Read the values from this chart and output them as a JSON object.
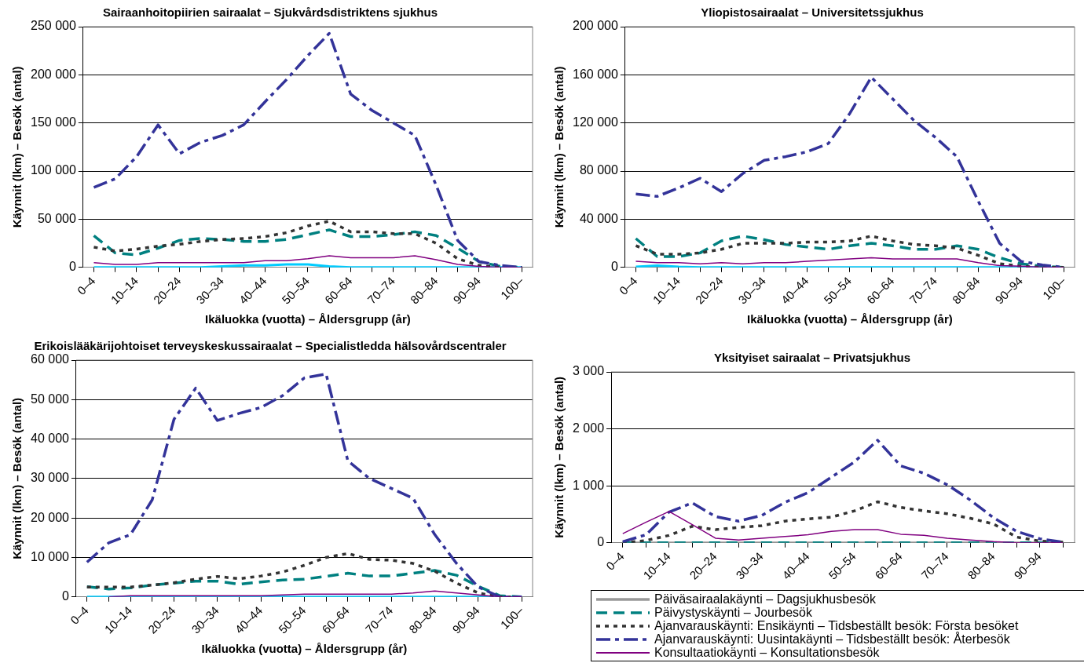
{
  "chart_data": [
    {
      "type": "line",
      "title": "Sairaanhoitopiirien sairaalat – Sjukvårdsdistriktens sjukhus",
      "xlabel": "Ikäluokka (vuotta) – Åldersgrupp (år)",
      "ylabel": "Käynnit (lkm) – Besök (antal)",
      "categories": [
        "0–4",
        null,
        "10–14",
        null,
        "20–24",
        null,
        "30–34",
        null,
        "40–44",
        null,
        "50–54",
        null,
        "60–64",
        null,
        "70–74",
        null,
        "80–84",
        null,
        "90–94",
        null,
        "100–"
      ],
      "ylim": [
        0,
        250000
      ],
      "yticks": [
        {
          "value": 0,
          "label": "0"
        },
        {
          "value": 50000,
          "label": "50 000"
        },
        {
          "value": 100000,
          "label": "100 000"
        },
        {
          "value": 150000,
          "label": "150 000"
        },
        {
          "value": 200000,
          "label": "200 000"
        },
        {
          "value": 250000,
          "label": "250 000"
        }
      ],
      "grid": "y",
      "series": [
        {
          "color": "#00ccff",
          "line_style": "solid",
          "values": [
            0,
            0,
            0,
            0,
            0,
            0,
            1000,
            2000,
            2000,
            3000,
            3000,
            1000,
            0,
            0,
            0,
            0,
            0,
            0,
            0,
            0,
            0
          ]
        },
        {
          "color": "#008080",
          "line_style": "dashed",
          "values": [
            33000,
            15000,
            13000,
            20000,
            28000,
            30000,
            29000,
            27000,
            27000,
            29000,
            34000,
            39000,
            32000,
            32000,
            34000,
            37000,
            33000,
            20000,
            6000,
            1000,
            0
          ]
        },
        {
          "color": "#333333",
          "line_style": "dotted",
          "values": [
            21000,
            17000,
            19000,
            22000,
            24000,
            27000,
            29000,
            30000,
            32000,
            36000,
            43000,
            48000,
            37000,
            37000,
            35000,
            35000,
            25000,
            9000,
            2000,
            0,
            0
          ]
        },
        {
          "color": "#333399",
          "line_style": "dashdot",
          "values": [
            83000,
            92000,
            115000,
            148000,
            118000,
            130000,
            137000,
            148000,
            172000,
            195000,
            220000,
            243000,
            180000,
            163000,
            150000,
            137000,
            85000,
            28000,
            6000,
            2000,
            0
          ]
        },
        {
          "color": "#800080",
          "line_style": "solid",
          "values": [
            5000,
            3000,
            3000,
            5000,
            5000,
            5000,
            5000,
            5000,
            7000,
            7000,
            9000,
            12000,
            10000,
            10000,
            10000,
            12000,
            8000,
            3000,
            1000,
            0,
            0
          ]
        }
      ]
    },
    {
      "type": "line",
      "title": "Yliopistosairaalat – Universitetssjukhus",
      "xlabel": "Ikäluokka (vuotta) – Åldersgrupp (år)",
      "ylabel": "Käynnit (lkm) – Besök (antal)",
      "categories": [
        "0–4",
        null,
        "10–14",
        null,
        "20–24",
        null,
        "30–34",
        null,
        "40–44",
        null,
        "50–54",
        null,
        "60–64",
        null,
        "70–74",
        null,
        "80–84",
        null,
        "90–94",
        null,
        "100–"
      ],
      "ylim": [
        0,
        200000
      ],
      "yticks": [
        {
          "value": 0,
          "label": "0"
        },
        {
          "value": 40000,
          "label": "40 000"
        },
        {
          "value": 80000,
          "label": "80 000"
        },
        {
          "value": 120000,
          "label": "120 000"
        },
        {
          "value": 160000,
          "label": "160 000"
        },
        {
          "value": 200000,
          "label": "200 000"
        }
      ],
      "grid": "y",
      "series": [
        {
          "color": "#00ccff",
          "line_style": "solid",
          "values": [
            500,
            1500,
            500,
            0,
            0,
            0,
            0,
            0,
            0,
            0,
            0,
            0,
            0,
            0,
            0,
            0,
            0,
            0,
            0,
            0,
            0
          ]
        },
        {
          "color": "#008080",
          "line_style": "dashed",
          "values": [
            24000,
            9000,
            9000,
            12000,
            22000,
            26000,
            23000,
            19000,
            17000,
            15000,
            18000,
            20000,
            18000,
            15000,
            15000,
            18000,
            15000,
            8000,
            3000,
            1000,
            0
          ]
        },
        {
          "color": "#333333",
          "line_style": "dotted",
          "values": [
            18000,
            11000,
            11000,
            12000,
            15000,
            20000,
            20000,
            20000,
            21000,
            21000,
            22000,
            26000,
            22000,
            19000,
            18000,
            16000,
            10000,
            3000,
            1000,
            0,
            0
          ]
        },
        {
          "color": "#333399",
          "line_style": "dashdot",
          "values": [
            61000,
            59000,
            66000,
            74000,
            63000,
            78000,
            89000,
            92000,
            96000,
            103000,
            128000,
            158000,
            140000,
            122000,
            108000,
            92000,
            55000,
            20000,
            5000,
            2000,
            0
          ]
        },
        {
          "color": "#800080",
          "line_style": "solid",
          "values": [
            5000,
            4000,
            4000,
            3000,
            4000,
            3000,
            4000,
            4000,
            5000,
            6000,
            7000,
            8000,
            7000,
            7000,
            7000,
            7000,
            4000,
            1500,
            1000,
            0,
            0
          ]
        }
      ]
    },
    {
      "type": "line",
      "title": "Erikoislääkärijohtoiset terveyskeskussairaalat – Specialistledda hälsovårdscentraler",
      "xlabel": "Ikäluokka (vuotta) – Åldersgrupp (år)",
      "ylabel": "Käynnit (lkm) – Besök (antal)",
      "categories": [
        "0–4",
        null,
        "10–14",
        null,
        "20–24",
        null,
        "30–34",
        null,
        "40–44",
        null,
        "50–54",
        null,
        "60–64",
        null,
        "70–74",
        null,
        "80–84",
        null,
        "90–94",
        null,
        "100–"
      ],
      "ylim": [
        0,
        60000
      ],
      "yticks": [
        {
          "value": 0,
          "label": "0"
        },
        {
          "value": 10000,
          "label": "10 000"
        },
        {
          "value": 20000,
          "label": "20 000"
        },
        {
          "value": 30000,
          "label": "30 000"
        },
        {
          "value": 40000,
          "label": "40 000"
        },
        {
          "value": 50000,
          "label": "50 000"
        },
        {
          "value": 60000,
          "label": "60 000"
        }
      ],
      "grid": "y",
      "series": [
        {
          "color": "#00ccff",
          "line_style": "solid",
          "values": [
            0,
            0,
            0,
            0,
            0,
            0,
            0,
            0,
            0,
            0,
            0,
            0,
            0,
            0,
            0,
            0,
            0,
            0,
            0,
            0,
            0
          ]
        },
        {
          "color": "#008080",
          "line_style": "dashed",
          "values": [
            2600,
            2000,
            2300,
            3000,
            3500,
            4000,
            4000,
            3200,
            3800,
            4300,
            4500,
            5200,
            6000,
            5300,
            5300,
            6000,
            6700,
            5500,
            2700,
            300,
            0
          ]
        },
        {
          "color": "#333333",
          "line_style": "dotted",
          "values": [
            2500,
            2500,
            2500,
            3000,
            3600,
            4500,
            5200,
            4600,
            5300,
            6300,
            8000,
            10000,
            11000,
            9500,
            9300,
            8500,
            6500,
            3500,
            1000,
            0,
            0
          ]
        },
        {
          "color": "#333399",
          "line_style": "dashdot",
          "values": [
            8800,
            13700,
            15800,
            24600,
            45000,
            52900,
            44700,
            46500,
            48000,
            51000,
            55500,
            56500,
            34500,
            30000,
            27500,
            25000,
            15800,
            8500,
            2500,
            0,
            0
          ]
        },
        {
          "color": "#800080",
          "line_style": "solid",
          "values": [
            null,
            0,
            300,
            300,
            300,
            300,
            300,
            300,
            300,
            500,
            700,
            700,
            700,
            700,
            700,
            1000,
            1500,
            1000,
            500,
            0,
            0
          ]
        }
      ]
    },
    {
      "type": "line",
      "title": "Yksityiset sairaalat – Privatsjukhus",
      "ylabel": "Käynnit (lkm) – Besök (antal)",
      "categories": [
        "0–4",
        null,
        "10–14",
        null,
        "20–24",
        null,
        "30–34",
        null,
        "40–44",
        null,
        "50–54",
        null,
        "60–64",
        null,
        "70–74",
        null,
        "80–84",
        null,
        "90–94",
        null
      ],
      "ylim": [
        0,
        3000
      ],
      "yticks": [
        {
          "value": 0,
          "label": "0"
        },
        {
          "value": 1000,
          "label": "1 000"
        },
        {
          "value": 2000,
          "label": "2 000"
        },
        {
          "value": 3000,
          "label": "3 000"
        }
      ],
      "grid": "y",
      "legend": "bottom",
      "series": [
        {
          "name": "Päiväsairaalakäynti – Dagsjukhusbesök",
          "color": "#999999",
          "line_style": "solid",
          "values": [
            0,
            0,
            0,
            0,
            0,
            0,
            0,
            0,
            0,
            0,
            0,
            0,
            0,
            0,
            0,
            0,
            0,
            0,
            0,
            0
          ]
        },
        {
          "name": "Päivystyskäynti – Jourbesök",
          "color": "#008080",
          "line_style": "dashed",
          "values": [
            0,
            0,
            0,
            0,
            0,
            0,
            0,
            0,
            0,
            0,
            0,
            0,
            0,
            0,
            0,
            0,
            0,
            0,
            0,
            0
          ]
        },
        {
          "name": "Ajanvarauskäynti: Ensikäynti – Tidsbeställt besök: Första besöket",
          "color": "#333333",
          "line_style": "dotted",
          "values": [
            0,
            40,
            130,
            290,
            230,
            270,
            300,
            380,
            420,
            450,
            560,
            720,
            620,
            560,
            510,
            430,
            330,
            100,
            30,
            10
          ]
        },
        {
          "name": "Ajanvarauskäynti: Uusintakäynti – Tidsbeställt besök: Återbesök",
          "color": "#333399",
          "line_style": "dashdot",
          "values": [
            20,
            140,
            540,
            700,
            460,
            380,
            480,
            710,
            880,
            1150,
            1420,
            1800,
            1350,
            1220,
            1020,
            750,
            440,
            200,
            70,
            10
          ]
        },
        {
          "name": "Konsultaatiokäynti – Konsultationsbesök",
          "color": "#800080",
          "line_style": "solid",
          "values": [
            160,
            360,
            550,
            320,
            80,
            50,
            80,
            110,
            140,
            200,
            230,
            230,
            150,
            130,
            80,
            50,
            20,
            0,
            0,
            0
          ]
        }
      ]
    }
  ]
}
